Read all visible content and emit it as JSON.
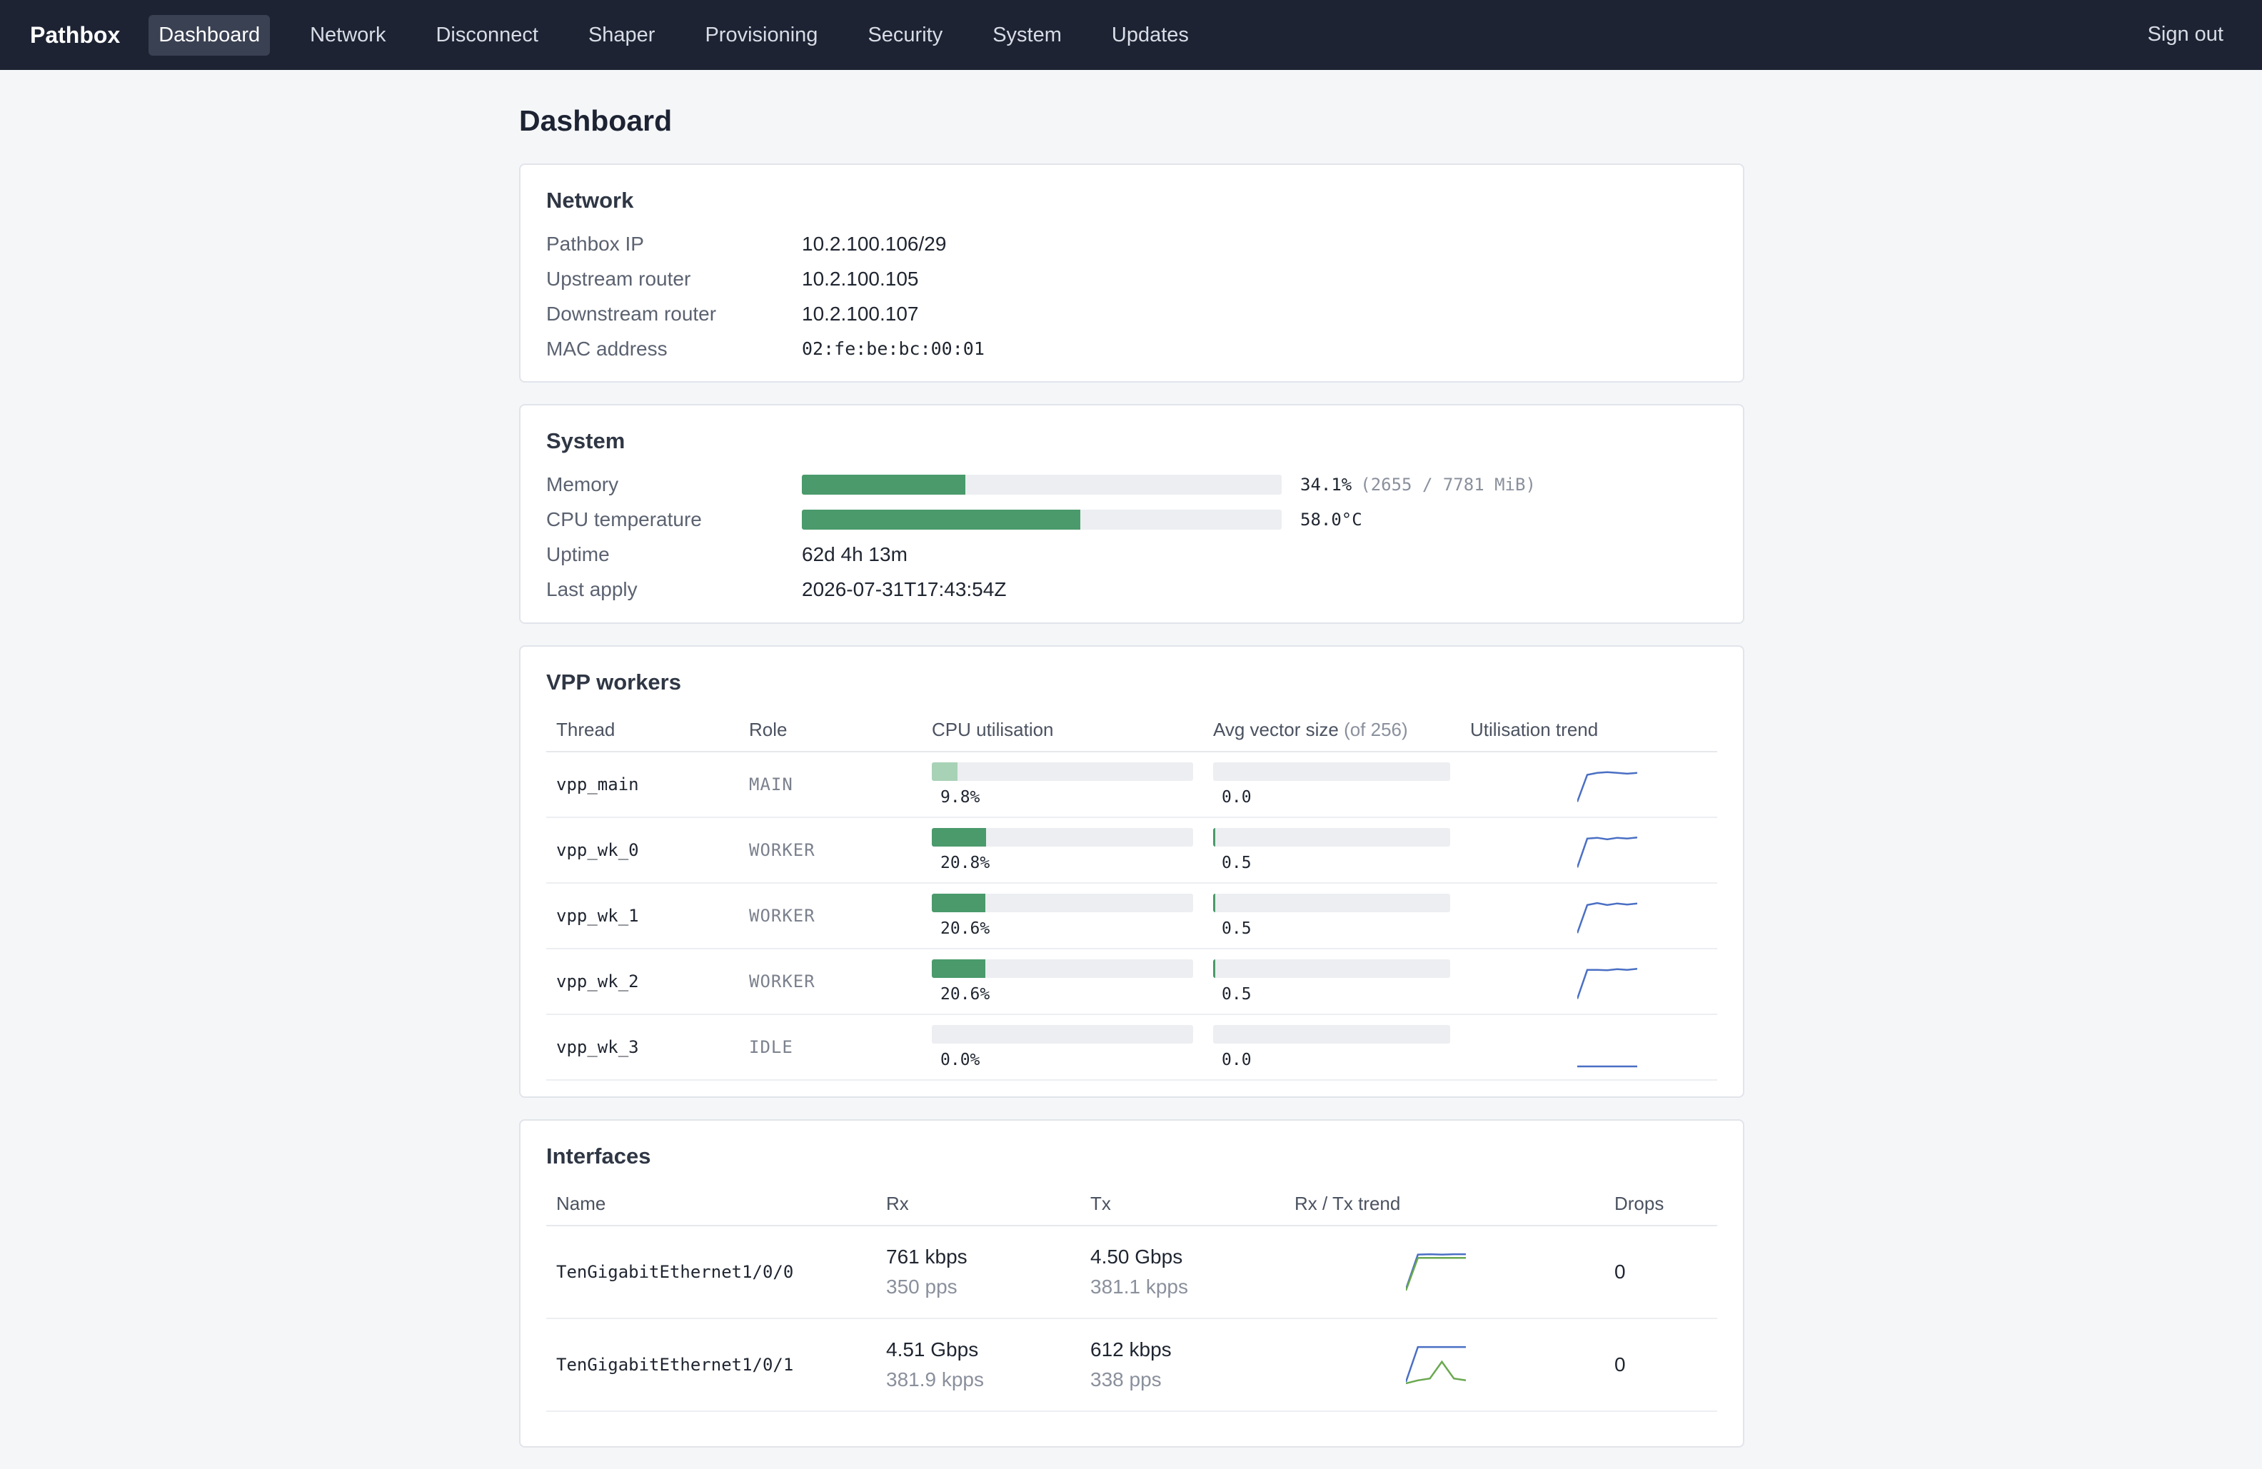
{
  "brand": "Pathbox",
  "nav": {
    "items": [
      "Dashboard",
      "Network",
      "Disconnect",
      "Shaper",
      "Provisioning",
      "Security",
      "System",
      "Updates"
    ],
    "active": "Dashboard",
    "signout": "Sign out"
  },
  "page_title": "Dashboard",
  "network": {
    "title": "Network",
    "rows": [
      {
        "key": "Pathbox IP",
        "value": "10.2.100.106/29"
      },
      {
        "key": "Upstream router",
        "value": "10.2.100.105"
      },
      {
        "key": "Downstream router",
        "value": "10.2.100.107"
      },
      {
        "key": "MAC address",
        "value": "02:fe:be:bc:00:01"
      }
    ]
  },
  "system": {
    "title": "System",
    "memory": {
      "label": "Memory",
      "percent": 34.1,
      "pct_text": "34.1%",
      "extra": "(2655 / 7781 MiB)"
    },
    "cpu_temp": {
      "label": "CPU temperature",
      "fraction": 0.58,
      "text": "58.0°C"
    },
    "uptime": {
      "label": "Uptime",
      "value": "62d 4h 13m"
    },
    "last_apply": {
      "label": "Last apply",
      "value": "2026-07-31T17:43:54Z"
    }
  },
  "workers": {
    "title": "VPP workers",
    "headers": {
      "thread": "Thread",
      "role": "Role",
      "cpu": "CPU utilisation",
      "vec": "Avg vector size",
      "vec_of": "(of 256)",
      "trend": "Utilisation trend"
    },
    "rows": [
      {
        "thread": "vpp_main",
        "role": "MAIN",
        "cpu": 9.8,
        "cpu_text": "9.8%",
        "vec": 0.0,
        "vec_text": "0.0",
        "trend": [
          0.05,
          0.75,
          0.8,
          0.82,
          0.8,
          0.78,
          0.8
        ]
      },
      {
        "thread": "vpp_wk_0",
        "role": "WORKER",
        "cpu": 20.8,
        "cpu_text": "20.8%",
        "vec": 0.5,
        "vec_text": "0.5",
        "trend": [
          0.05,
          0.8,
          0.82,
          0.78,
          0.82,
          0.8,
          0.83
        ]
      },
      {
        "thread": "vpp_wk_1",
        "role": "WORKER",
        "cpu": 20.6,
        "cpu_text": "20.6%",
        "vec": 0.5,
        "vec_text": "0.5",
        "trend": [
          0.05,
          0.78,
          0.83,
          0.78,
          0.82,
          0.79,
          0.82
        ]
      },
      {
        "thread": "vpp_wk_2",
        "role": "WORKER",
        "cpu": 20.6,
        "cpu_text": "20.6%",
        "vec": 0.5,
        "vec_text": "0.5",
        "trend": [
          0.05,
          0.8,
          0.8,
          0.79,
          0.82,
          0.8,
          0.83
        ]
      },
      {
        "thread": "vpp_wk_3",
        "role": "IDLE",
        "cpu": 0.0,
        "cpu_text": "0.0%",
        "vec": 0.0,
        "vec_text": "0.0",
        "trend": [
          0,
          0,
          0,
          0,
          0,
          0,
          0
        ]
      }
    ]
  },
  "interfaces": {
    "title": "Interfaces",
    "headers": {
      "name": "Name",
      "rx": "Rx",
      "tx": "Tx",
      "trend": "Rx / Tx trend",
      "drops": "Drops"
    },
    "rows": [
      {
        "name": "TenGigabitEthernet1/0/0",
        "rx": "761 kbps",
        "rx_sub": "350 pps",
        "tx": "4.50 Gbps",
        "tx_sub": "381.1 kpps",
        "drops": "0",
        "rx_trend": [
          0.02,
          0.95,
          0.96,
          0.95,
          0.96,
          0.96
        ],
        "tx_trend": [
          0.02,
          0.9,
          0.9,
          0.9,
          0.9,
          0.9
        ]
      },
      {
        "name": "TenGigabitEthernet1/0/1",
        "rx": "4.51 Gbps",
        "rx_sub": "381.9 kpps",
        "tx": "612 kbps",
        "tx_sub": "338 pps",
        "drops": "0",
        "rx_trend": [
          0.02,
          0.96,
          0.96,
          0.96,
          0.96,
          0.96
        ],
        "tx_trend": [
          0.02,
          0.1,
          0.15,
          0.6,
          0.15,
          0.1
        ]
      }
    ]
  },
  "colors": {
    "bar_green": "#4a9a6b",
    "bar_light": "#a8d2b6",
    "trend_blue": "#4a6fc4",
    "trend_green": "#6aa84f"
  }
}
